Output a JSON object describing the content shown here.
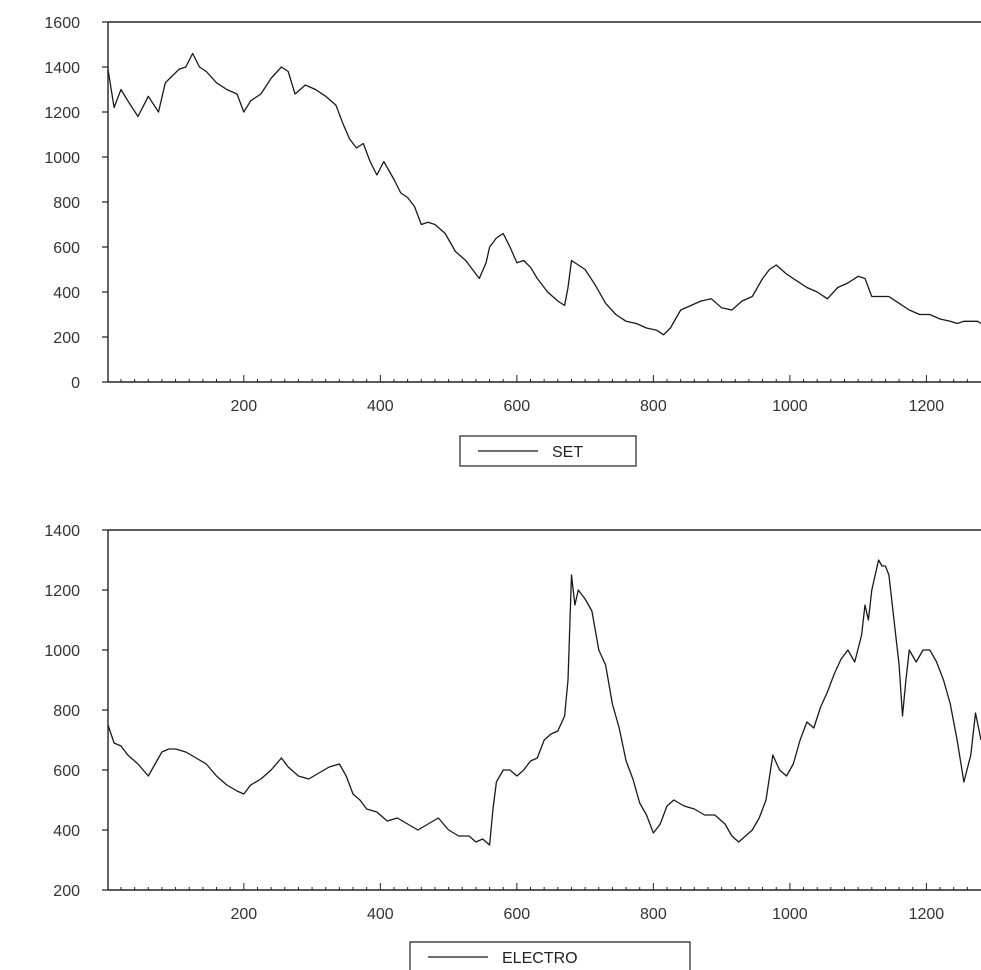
{
  "chart_data": [
    {
      "type": "line",
      "title": "",
      "xlabel": "",
      "ylabel": "",
      "xlim": [
        1,
        1280
      ],
      "ylim": [
        0,
        1600
      ],
      "x_ticks": [
        200,
        400,
        600,
        800,
        1000,
        1200
      ],
      "x_tick_labels": [
        "200",
        "400",
        "600",
        "800",
        "1000",
        "1200"
      ],
      "y_ticks": [
        0,
        200,
        400,
        600,
        800,
        1000,
        1200,
        1400,
        1600
      ],
      "y_tick_labels": [
        "0",
        "200",
        "400",
        "600",
        "800",
        "1000",
        "1200",
        "1400",
        "1600"
      ],
      "grid": false,
      "legend": "bottom-center",
      "series": [
        {
          "name": "SET",
          "color": "#1a1a1a",
          "x": [
            1,
            10,
            20,
            30,
            45,
            60,
            75,
            85,
            95,
            105,
            115,
            125,
            135,
            145,
            160,
            175,
            190,
            200,
            210,
            225,
            240,
            255,
            265,
            275,
            290,
            305,
            320,
            335,
            345,
            355,
            365,
            375,
            385,
            395,
            405,
            420,
            430,
            440,
            450,
            460,
            470,
            480,
            495,
            510,
            525,
            535,
            545,
            555,
            560,
            570,
            580,
            590,
            600,
            610,
            620,
            630,
            645,
            660,
            670,
            675,
            680,
            690,
            700,
            715,
            730,
            745,
            760,
            775,
            790,
            805,
            815,
            825,
            840,
            855,
            870,
            885,
            900,
            915,
            930,
            945,
            960,
            970,
            980,
            995,
            1010,
            1025,
            1040,
            1055,
            1070,
            1085,
            1100,
            1110,
            1120,
            1130,
            1145,
            1160,
            1175,
            1190,
            1205,
            1220,
            1235,
            1245,
            1255,
            1265,
            1275,
            1280
          ],
          "values": [
            1390,
            1220,
            1300,
            1250,
            1180,
            1270,
            1200,
            1330,
            1360,
            1390,
            1400,
            1460,
            1400,
            1380,
            1330,
            1300,
            1280,
            1200,
            1250,
            1280,
            1350,
            1400,
            1380,
            1280,
            1320,
            1300,
            1270,
            1230,
            1150,
            1080,
            1040,
            1060,
            980,
            920,
            980,
            900,
            840,
            820,
            780,
            700,
            710,
            700,
            660,
            580,
            540,
            500,
            460,
            530,
            600,
            640,
            660,
            600,
            530,
            540,
            510,
            460,
            400,
            360,
            340,
            420,
            540,
            520,
            500,
            430,
            350,
            300,
            270,
            260,
            240,
            230,
            210,
            240,
            320,
            340,
            360,
            370,
            330,
            320,
            360,
            380,
            460,
            500,
            520,
            480,
            450,
            420,
            400,
            370,
            420,
            440,
            470,
            460,
            380,
            380,
            380,
            350,
            320,
            300,
            300,
            280,
            270,
            260,
            270,
            270,
            270,
            260
          ]
        }
      ]
    },
    {
      "type": "line",
      "title": "",
      "xlabel": "",
      "ylabel": "",
      "xlim": [
        1,
        1280
      ],
      "ylim": [
        200,
        1400
      ],
      "x_ticks": [
        200,
        400,
        600,
        800,
        1000,
        1200
      ],
      "x_tick_labels": [
        "200",
        "400",
        "600",
        "800",
        "1000",
        "1200"
      ],
      "y_ticks": [
        200,
        400,
        600,
        800,
        1000,
        1200,
        1400
      ],
      "y_tick_labels": [
        "200",
        "400",
        "600",
        "800",
        "1000",
        "1200",
        "1400"
      ],
      "grid": false,
      "legend": "bottom-center",
      "series": [
        {
          "name": "ELECTRO",
          "color": "#1a1a1a",
          "x": [
            1,
            10,
            20,
            30,
            45,
            60,
            70,
            80,
            90,
            100,
            115,
            130,
            145,
            160,
            175,
            190,
            200,
            210,
            225,
            240,
            255,
            265,
            280,
            295,
            310,
            325,
            340,
            350,
            360,
            370,
            380,
            395,
            410,
            425,
            440,
            455,
            470,
            485,
            500,
            515,
            530,
            540,
            550,
            560,
            565,
            570,
            580,
            590,
            600,
            610,
            620,
            630,
            640,
            650,
            660,
            670,
            675,
            680,
            685,
            690,
            700,
            710,
            720,
            730,
            740,
            750,
            760,
            770,
            780,
            790,
            800,
            810,
            820,
            830,
            845,
            860,
            875,
            890,
            905,
            915,
            925,
            935,
            945,
            955,
            965,
            975,
            985,
            995,
            1005,
            1015,
            1025,
            1035,
            1045,
            1055,
            1065,
            1075,
            1085,
            1095,
            1105,
            1110,
            1115,
            1120,
            1125,
            1130,
            1135,
            1140,
            1145,
            1150,
            1160,
            1165,
            1170,
            1175,
            1180,
            1185,
            1195,
            1205,
            1215,
            1225,
            1235,
            1245,
            1255,
            1265,
            1272,
            1280
          ],
          "values": [
            750,
            690,
            680,
            650,
            620,
            580,
            620,
            660,
            670,
            670,
            660,
            640,
            620,
            580,
            550,
            530,
            520,
            550,
            570,
            600,
            640,
            610,
            580,
            570,
            590,
            610,
            620,
            580,
            520,
            500,
            470,
            460,
            430,
            440,
            420,
            400,
            420,
            440,
            400,
            380,
            380,
            360,
            370,
            350,
            470,
            560,
            600,
            600,
            580,
            600,
            630,
            640,
            700,
            720,
            730,
            780,
            900,
            1250,
            1150,
            1200,
            1170,
            1130,
            1000,
            950,
            820,
            740,
            630,
            570,
            490,
            450,
            390,
            420,
            480,
            500,
            480,
            470,
            450,
            450,
            420,
            380,
            360,
            380,
            400,
            440,
            500,
            650,
            600,
            580,
            620,
            700,
            760,
            740,
            810,
            860,
            920,
            970,
            1000,
            960,
            1050,
            1150,
            1100,
            1200,
            1250,
            1300,
            1280,
            1280,
            1250,
            1150,
            950,
            780,
            900,
            1000,
            980,
            960,
            1000,
            1000,
            960,
            900,
            820,
            700,
            560,
            650,
            790,
            700
          ]
        }
      ]
    }
  ]
}
